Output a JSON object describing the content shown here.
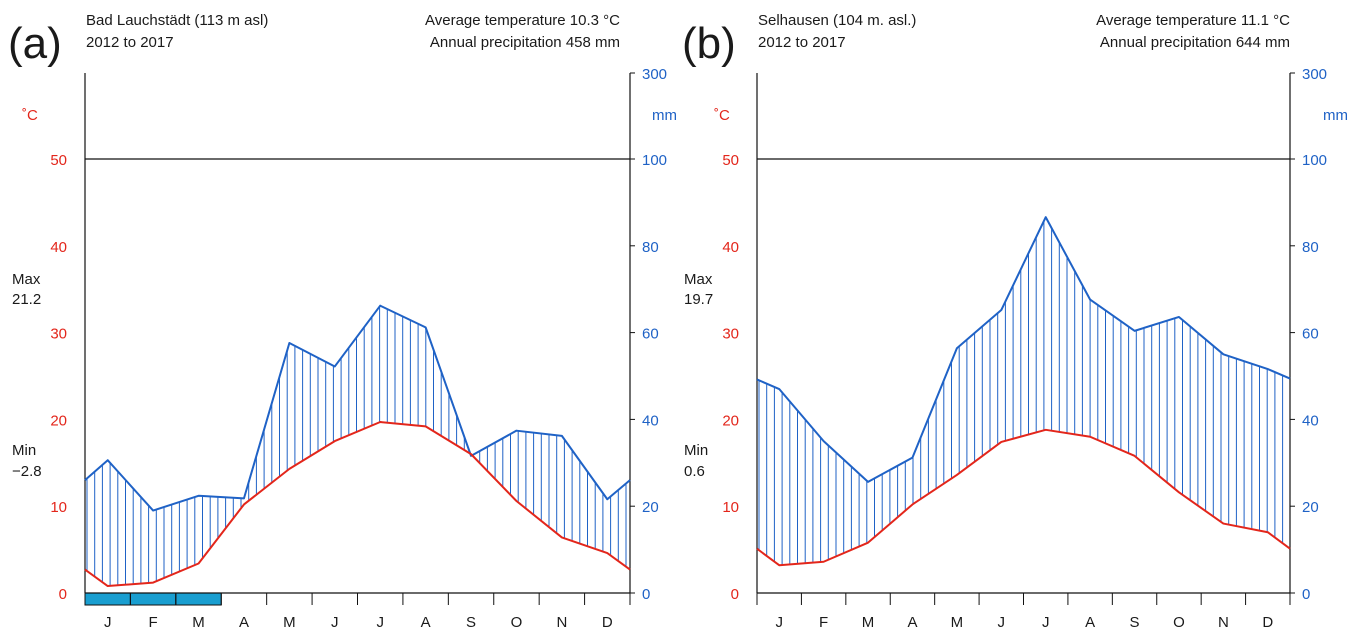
{
  "chart_data": [
    {
      "panel_label": "(a)",
      "type": "line",
      "title": "Bad Lauchstädt (113 m asl)",
      "subtitle": "2012 to 2017",
      "info_line1": "Average temperature 10.3 °C",
      "info_line2": "Annual precipitation 458 mm",
      "xlabels": [
        "J",
        "F",
        "M",
        "A",
        "M",
        "J",
        "J",
        "A",
        "S",
        "O",
        "N",
        "D"
      ],
      "ylabel_left": "˚C",
      "ylabel_right": "mm",
      "ylim_left": [
        0,
        60
      ],
      "ylim_right": [
        0,
        300
      ],
      "yticks_left": [
        0,
        10,
        20,
        30,
        40,
        50
      ],
      "yticks_right": [
        0,
        20,
        40,
        60,
        80,
        100,
        300
      ],
      "max_label": "Max",
      "max_value": "21.2",
      "min_label": "Min",
      "min_value": "−2.8",
      "temperature_series": {
        "name": "",
        "color": "#e3261b",
        "x": [
          0,
          0.5,
          1.5,
          2.5,
          3.5,
          4.5,
          5.5,
          6.5,
          7.5,
          8.5,
          9.5,
          10.5,
          11.5,
          12
        ],
        "values": [
          2.7,
          0.8,
          1.2,
          3.4,
          10.2,
          14.3,
          17.5,
          19.7,
          19.2,
          16.0,
          10.6,
          6.4,
          4.6,
          2.7
        ]
      },
      "precipitation_series": {
        "name": "",
        "color": "#1f62c6",
        "x": [
          0,
          0.5,
          1.5,
          2.5,
          3.5,
          4.5,
          5.5,
          6.5,
          7.5,
          8.5,
          9.5,
          10.5,
          11.5,
          12
        ],
        "values": [
          26,
          30.6,
          19,
          22.4,
          21.8,
          57.6,
          52.2,
          66.2,
          61.2,
          31.6,
          37.4,
          36.2,
          21.6,
          26
        ]
      },
      "frost_months": [
        0,
        1,
        2
      ],
      "frost_color": "#199ed0"
    },
    {
      "panel_label": "(b)",
      "type": "line",
      "title": "Selhausen (104 m. asl.)",
      "subtitle": "2012 to 2017",
      "info_line1": "Average temperature 11.1 °C",
      "info_line2": "Annual precipitation 644 mm",
      "xlabels": [
        "J",
        "F",
        "M",
        "A",
        "M",
        "J",
        "J",
        "A",
        "S",
        "O",
        "N",
        "D"
      ],
      "ylabel_left": "˚C",
      "ylabel_right": "mm",
      "ylim_left": [
        0,
        60
      ],
      "ylim_right": [
        0,
        300
      ],
      "yticks_left": [
        0,
        10,
        20,
        30,
        40,
        50
      ],
      "yticks_right": [
        0,
        20,
        40,
        60,
        80,
        100,
        300
      ],
      "max_label": "Max",
      "max_value": "19.7",
      "min_label": "Min",
      "min_value": "0.6",
      "temperature_series": {
        "name": "",
        "color": "#e3261b",
        "x": [
          0,
          0.5,
          1.5,
          2.5,
          3.5,
          4.5,
          5.5,
          6.5,
          7.5,
          8.5,
          9.5,
          10.5,
          11.5,
          12
        ],
        "values": [
          5.1,
          3.2,
          3.6,
          5.8,
          10.2,
          13.6,
          17.4,
          18.8,
          18.0,
          15.8,
          11.6,
          8.0,
          7.0,
          5.1
        ]
      },
      "precipitation_series": {
        "name": "",
        "color": "#1f62c6",
        "x": [
          0,
          0.5,
          1.5,
          2.5,
          3.5,
          4.5,
          5.5,
          6.5,
          7.5,
          8.5,
          9.5,
          10.5,
          11.5,
          12
        ],
        "values": [
          49.2,
          47,
          35,
          25.6,
          31.2,
          56.4,
          65.2,
          86.6,
          67.6,
          60.4,
          63.6,
          55,
          51.6,
          49.4
        ]
      },
      "frost_months": [],
      "frost_color": "#199ed0"
    }
  ]
}
